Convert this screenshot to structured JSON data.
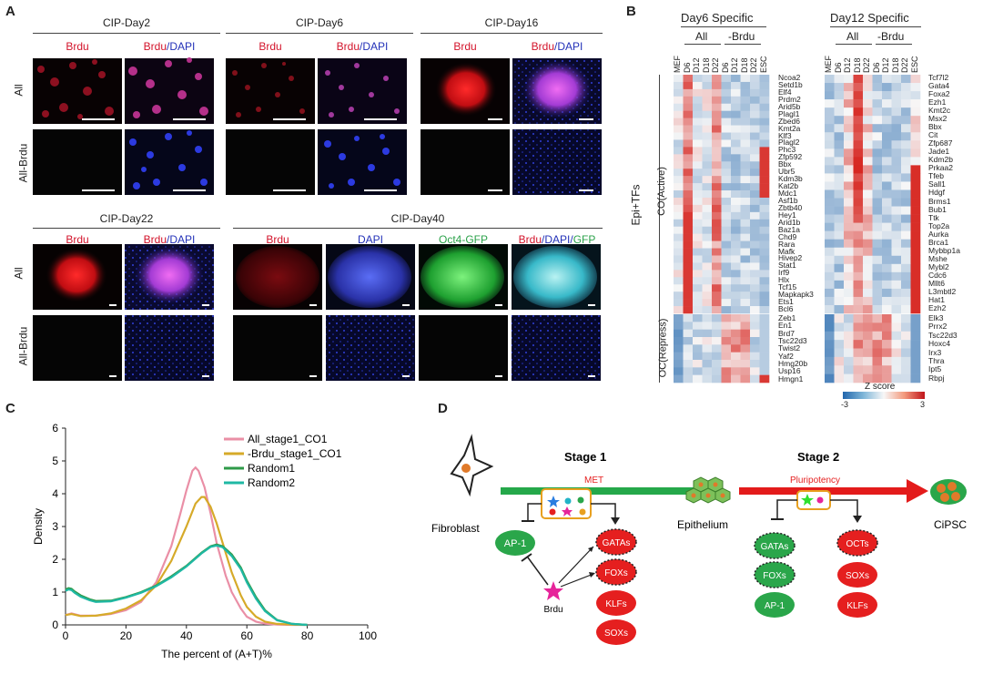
{
  "panel_letters": {
    "a": "A",
    "b": "B",
    "c": "C",
    "d": "D"
  },
  "panelA": {
    "groups": [
      {
        "title": "CIP-Day2",
        "cols": [
          {
            "parts": [
              {
                "t": "Brdu",
                "c": "red"
              }
            ]
          },
          {
            "parts": [
              {
                "t": "Brdu",
                "c": "red"
              },
              {
                "t": "/DAPI",
                "c": "blue"
              }
            ]
          }
        ]
      },
      {
        "title": "CIP-Day6",
        "cols": [
          {
            "parts": [
              {
                "t": "Brdu",
                "c": "red"
              }
            ]
          },
          {
            "parts": [
              {
                "t": "Brdu",
                "c": "red"
              },
              {
                "t": "/DAPI",
                "c": "blue"
              }
            ]
          }
        ]
      },
      {
        "title": "CIP-Day16",
        "cols": [
          {
            "parts": [
              {
                "t": "Brdu",
                "c": "red"
              }
            ]
          },
          {
            "parts": [
              {
                "t": "Brdu",
                "c": "red"
              },
              {
                "t": "/DAPI",
                "c": "blue"
              }
            ]
          }
        ]
      },
      {
        "title": "CIP-Day22",
        "cols": [
          {
            "parts": [
              {
                "t": "Brdu",
                "c": "red"
              }
            ]
          },
          {
            "parts": [
              {
                "t": "Brdu",
                "c": "red"
              },
              {
                "t": "/DAPI",
                "c": "blue"
              }
            ]
          }
        ]
      },
      {
        "title": "CIP-Day40",
        "cols": [
          {
            "parts": [
              {
                "t": "Brdu",
                "c": "red"
              }
            ]
          },
          {
            "parts": [
              {
                "t": "DAPI",
                "c": "blue"
              }
            ]
          },
          {
            "parts": [
              {
                "t": "Oct4-GFP",
                "c": "green"
              }
            ]
          },
          {
            "parts": [
              {
                "t": "Brdu",
                "c": "red"
              },
              {
                "t": "/DAPI/",
                "c": "blue"
              },
              {
                "t": "GFP",
                "c": "green"
              }
            ]
          }
        ]
      }
    ],
    "row_labels": [
      "All",
      "All-Brdu"
    ]
  },
  "panelB": {
    "day6_title": "Day6 Specific",
    "day12_title": "Day12 Specific",
    "all_label": "All",
    "brdu_label": "-Brdu",
    "columns": [
      "MEF",
      "D6",
      "D12",
      "D18",
      "D22",
      "D6",
      "D12",
      "D18",
      "D22",
      "ESC"
    ],
    "epi_label": "Epi+TFs",
    "active_label": "CO(Active)",
    "repress_label": "OC(Repress)",
    "day6_active_genes": [
      "Ncoa2",
      "Setd1b",
      "Elf4",
      "Prdm2",
      "Arid5b",
      "Plagl1",
      "Zbed6",
      "Kmt2a",
      "Klf3",
      "Plagl2",
      "Phc3",
      "Zfp592",
      "Bbx",
      "Ubr5",
      "Kdm3b",
      "Kat2b",
      "Mdc1",
      "Asf1b",
      "Zbtb40",
      "Hey1",
      "Arid1b",
      "Baz1a",
      "Chd9",
      "Rara",
      "Mafk",
      "Hivep2",
      "Stat1",
      "Irf9",
      "Hlx",
      "Tcf15",
      "Mapkapk3",
      "Ets1",
      "Bcl6"
    ],
    "day6_repress_genes": [
      "Zeb1",
      "En1",
      "Brd7",
      "Tsc22d3",
      "Twist2",
      "Yaf2",
      "Hmg20b",
      "Usp16",
      "Hmgn1"
    ],
    "day12_active_genes": [
      "Tcf7l2",
      "Gata4",
      "Foxa2",
      "Ezh1",
      "Kmt2c",
      "Msx2",
      "Bbx",
      "Cit",
      "Zfp687",
      "Jade1",
      "Kdm2b",
      "Prkaa2",
      "Tfeb",
      "Sall1",
      "Hdgf",
      "Brms1",
      "Bub1",
      "Ttk",
      "Top2a",
      "Aurka",
      "Brca1",
      "Mybbp1a",
      "Mshe",
      "Mybl2",
      "Cdc6",
      "Mllt6",
      "L3mbtl2",
      "Hat1",
      "Ezh2"
    ],
    "day12_repress_genes": [
      "Elk3",
      "Prrx2",
      "Tsc22d3",
      "Hoxc4",
      "Irx3",
      "Thra",
      "Ipt5",
      "Rbpj"
    ],
    "zscore_label": "Z score",
    "zscore_min": "-3",
    "zscore_max": "3",
    "colors": {
      "low": "#2166ac",
      "mid": "#f7f7f7",
      "high": "#d6231d"
    }
  },
  "chart_data": {
    "type": "line",
    "xlabel": "The percent of (A+T)%",
    "ylabel": "Density",
    "xlim": [
      0,
      100
    ],
    "ylim": [
      0,
      6
    ],
    "xticks": [
      0,
      20,
      40,
      60,
      80,
      100
    ],
    "yticks": [
      0,
      1,
      2,
      3,
      4,
      5,
      6
    ],
    "legend_position": "top-right",
    "series": [
      {
        "name": "All_stage1_CO1",
        "color": "#ea8fa6",
        "x": [
          0,
          2,
          5,
          10,
          15,
          20,
          25,
          30,
          35,
          38,
          40,
          42,
          43,
          44,
          46,
          48,
          50,
          53,
          55,
          58,
          60,
          63,
          66,
          70,
          75,
          80
        ],
        "y": [
          0.3,
          0.35,
          0.28,
          0.28,
          0.33,
          0.45,
          0.7,
          1.3,
          2.4,
          3.4,
          4.1,
          4.7,
          4.8,
          4.7,
          4.2,
          3.4,
          2.5,
          1.5,
          1.0,
          0.5,
          0.25,
          0.1,
          0.04,
          0.01,
          0,
          0
        ]
      },
      {
        "name": "-Brdu_stage1_CO1",
        "color": "#d6aa29",
        "x": [
          0,
          2,
          5,
          10,
          15,
          20,
          25,
          30,
          35,
          40,
          43,
          45,
          46,
          48,
          50,
          52,
          55,
          58,
          60,
          63,
          66,
          70,
          75,
          80
        ],
        "y": [
          0.3,
          0.33,
          0.27,
          0.28,
          0.35,
          0.5,
          0.75,
          1.2,
          1.95,
          3.0,
          3.7,
          3.9,
          3.9,
          3.6,
          3.1,
          2.5,
          1.6,
          0.9,
          0.55,
          0.25,
          0.1,
          0.03,
          0.01,
          0
        ]
      },
      {
        "name": "Random1",
        "color": "#2e9a48",
        "x": [
          0,
          1,
          2,
          3,
          5,
          8,
          10,
          15,
          20,
          25,
          30,
          35,
          40,
          45,
          48,
          50,
          52,
          55,
          58,
          60,
          63,
          66,
          70,
          75,
          80
        ],
        "y": [
          1.08,
          1.12,
          1.1,
          1.02,
          0.9,
          0.78,
          0.73,
          0.74,
          0.85,
          1.0,
          1.2,
          1.48,
          1.8,
          2.2,
          2.4,
          2.45,
          2.4,
          2.15,
          1.75,
          1.35,
          0.85,
          0.45,
          0.15,
          0.03,
          0
        ]
      },
      {
        "name": "Random2",
        "color": "#1fb8a4",
        "x": [
          0,
          1,
          2,
          3,
          5,
          8,
          10,
          15,
          20,
          25,
          30,
          35,
          40,
          45,
          48,
          50,
          52,
          55,
          58,
          60,
          63,
          66,
          70,
          75,
          80
        ],
        "y": [
          1.04,
          1.08,
          1.06,
          0.98,
          0.86,
          0.75,
          0.7,
          0.72,
          0.83,
          0.98,
          1.18,
          1.45,
          1.78,
          2.18,
          2.38,
          2.42,
          2.37,
          2.1,
          1.7,
          1.3,
          0.8,
          0.42,
          0.14,
          0.03,
          0
        ]
      }
    ]
  },
  "panelD": {
    "stage1": "Stage 1",
    "stage2": "Stage 2",
    "met": "MET",
    "pluripotency": "Pluripotency",
    "fibroblast": "Fibroblast",
    "epithelium": "Epithelium",
    "cipsc": "CiPSC",
    "brdu": "Brdu",
    "stage1_left": [
      "AP-1"
    ],
    "stage1_right": [
      "GATAs",
      "FOXs",
      "KLFs",
      "SOXs"
    ],
    "stage2_left": [
      "GATAs",
      "FOXs",
      "AP-1"
    ],
    "stage2_right": [
      "OCTs",
      "SOXs",
      "KLFs"
    ],
    "colors": {
      "green": "#2aa64a",
      "red": "#e51f1f",
      "arrow_green": "#25a84a",
      "arrow_red": "#e31b1b"
    }
  }
}
